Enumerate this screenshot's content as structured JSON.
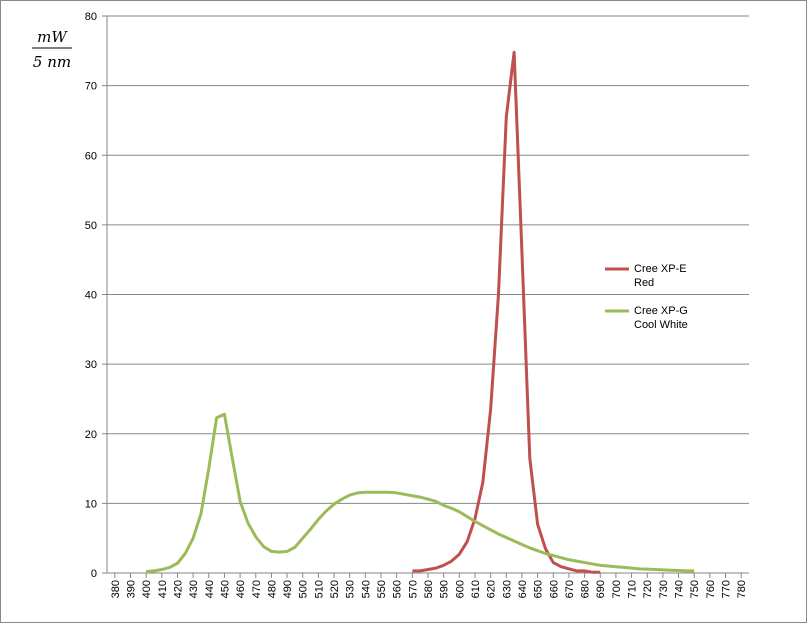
{
  "chart_data": {
    "type": "line",
    "ylabel": [
      "mW",
      "5 nm"
    ],
    "x": [
      400,
      405,
      410,
      415,
      420,
      425,
      430,
      435,
      440,
      445,
      450,
      455,
      460,
      465,
      470,
      475,
      480,
      485,
      490,
      495,
      500,
      505,
      510,
      515,
      520,
      525,
      530,
      535,
      540,
      545,
      550,
      555,
      560,
      565,
      570,
      575,
      580,
      585,
      590,
      595,
      600,
      605,
      610,
      615,
      620,
      625,
      630,
      635,
      640,
      645,
      650,
      655,
      660,
      665,
      670,
      675,
      680,
      685,
      690,
      695,
      700,
      705,
      710,
      715,
      720,
      725,
      730,
      735,
      740,
      745,
      750
    ],
    "series": [
      {
        "name": "Cree XP-E Red",
        "color": "#c0504d",
        "values": [
          null,
          null,
          null,
          null,
          null,
          null,
          null,
          null,
          null,
          null,
          null,
          null,
          null,
          null,
          null,
          null,
          null,
          null,
          null,
          null,
          null,
          null,
          null,
          null,
          null,
          null,
          null,
          null,
          null,
          null,
          null,
          null,
          null,
          null,
          0.3,
          0.3,
          0.5,
          0.7,
          1.1,
          1.7,
          2.7,
          4.5,
          7.8,
          13,
          23.5,
          40,
          65.5,
          74.8,
          46,
          16.5,
          7,
          3.5,
          1.5,
          0.9,
          0.6,
          0.3,
          0.3,
          0.1,
          0.1,
          null,
          null,
          null,
          null,
          null,
          null,
          null,
          null,
          null,
          null,
          null,
          null
        ]
      },
      {
        "name": "Cree XP-G Cool White",
        "color": "#9bbb59",
        "values": [
          0.2,
          0.3,
          0.5,
          0.8,
          1.4,
          2.8,
          5,
          8.5,
          15,
          22.3,
          22.8,
          16.5,
          10.3,
          7.2,
          5.2,
          3.8,
          3.1,
          3.0,
          3.1,
          3.7,
          5,
          6.3,
          7.7,
          8.9,
          9.9,
          10.6,
          11.2,
          11.5,
          11.6,
          11.6,
          11.6,
          11.6,
          11.5,
          11.3,
          11.1,
          10.9,
          10.6,
          10.3,
          9.7,
          9.3,
          8.8,
          8.1,
          7.4,
          6.8,
          6.2,
          5.6,
          5.1,
          4.6,
          4.1,
          3.6,
          3.2,
          2.8,
          2.5,
          2.2,
          1.9,
          1.7,
          1.5,
          1.3,
          1.1,
          1.0,
          0.9,
          0.8,
          0.7,
          0.6,
          0.55,
          0.5,
          0.45,
          0.4,
          0.35,
          0.3,
          0.3
        ]
      }
    ],
    "xlim": [
      375,
      785
    ],
    "xticks": [
      380,
      390,
      400,
      410,
      420,
      430,
      440,
      450,
      460,
      470,
      480,
      490,
      500,
      510,
      520,
      530,
      540,
      550,
      560,
      570,
      580,
      590,
      600,
      610,
      620,
      630,
      640,
      650,
      660,
      670,
      680,
      690,
      700,
      710,
      720,
      730,
      740,
      750,
      760,
      770,
      780
    ],
    "ylim": [
      0,
      80
    ],
    "yticks": [
      0,
      10,
      20,
      30,
      40,
      50,
      60,
      70,
      80
    ],
    "grid": true,
    "legend": "right"
  }
}
